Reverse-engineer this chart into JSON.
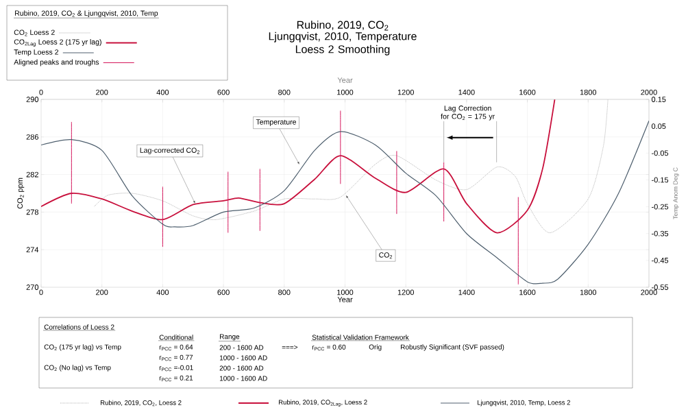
{
  "chart_data": {
    "type": "line",
    "title": "Rubino, 2019, CO$_{2}$",
    "subtitle": "Ljungqvist, 2010, Temperature Loess 2 Smoothing",
    "xlabel": "Year",
    "x2label": "Year",
    "ylabel": "CO$_{2}$ ppm",
    "y2label": "Temp Anom Deg C",
    "legend_title": "Rubino, 2019, CO$_{2}$ & Ljungqvist, 2010, Temp",
    "legend": "top left",
    "grid": true,
    "marker": "none",
    "xlim": [
      0,
      2000
    ],
    "xticks": [
      0,
      200,
      400,
      600,
      800,
      1000,
      1200,
      1400,
      1600,
      1800,
      2000
    ],
    "x2lim": [
      0,
      2000
    ],
    "x2ticks": [
      0,
      200,
      400,
      600,
      800,
      1000,
      1200,
      1400,
      1600,
      1800,
      2000
    ],
    "ylim": [
      270,
      290
    ],
    "yticks": [
      270,
      274,
      278,
      282,
      286,
      290
    ],
    "y2lim": [
      -0.55,
      0.15
    ],
    "y2ticks": [
      -0.55,
      -0.45,
      -0.35,
      -0.25,
      -0.15,
      -0.05,
      0.05,
      0.15
    ],
    "series": [
      {
        "name": "CO$_{2}$ Loess 2",
        "color": "#b4b4b4",
        "line_style": "dotted",
        "x": [
          175,
          220,
          300,
          400,
          500,
          575,
          700,
          800,
          900,
          985,
          1100,
          1170,
          1300,
          1400,
          1500,
          1560,
          1600,
          1675,
          1800,
          1850,
          1865
        ],
        "values": [
          278.6,
          279.8,
          280.0,
          279.2,
          277.6,
          277.2,
          278.1,
          279.4,
          279.4,
          279.6,
          283.1,
          284.0,
          281.4,
          280.4,
          282.8,
          281.8,
          278.9,
          275.8,
          279.4,
          285.0,
          290
        ]
      },
      {
        "name": "CO$_{2Lag}$ Loess 2 (175 yr lag)",
        "color": "#c8103c",
        "line_style": "solid",
        "x": [
          0,
          100,
          200,
          300,
          400,
          500,
          600,
          650,
          720,
          800,
          900,
          985,
          1100,
          1200,
          1325,
          1400,
          1500,
          1600,
          1650,
          1690
        ],
        "values": [
          278.6,
          280.0,
          279.4,
          278.1,
          277.2,
          278.8,
          279.2,
          279.5,
          279.0,
          278.9,
          281.5,
          284.0,
          281.6,
          280.1,
          282.6,
          278.9,
          275.8,
          278.2,
          282.6,
          290
        ]
      },
      {
        "name": "Temp Loess 2",
        "color": "#4e5f6e",
        "line_style": "solid",
        "axis": "y2",
        "x": [
          0,
          100,
          200,
          300,
          400,
          440,
          500,
          600,
          700,
          800,
          900,
          985,
          1100,
          1200,
          1300,
          1400,
          1500,
          1600,
          1650,
          1700,
          1800,
          1900,
          2000
        ],
        "values": [
          -0.02,
          0.0,
          -0.04,
          -0.21,
          -0.315,
          -0.325,
          -0.32,
          -0.27,
          -0.255,
          -0.19,
          -0.04,
          0.03,
          -0.02,
          -0.125,
          -0.21,
          -0.35,
          -0.44,
          -0.53,
          -0.535,
          -0.52,
          -0.39,
          -0.2,
          0.07
        ]
      },
      {
        "name": "Aligned peaks and troughs",
        "color": "#d4145a",
        "line_style": "solid",
        "x": [
          100,
          100,
          null,
          400,
          400,
          null,
          615,
          615,
          null,
          720,
          720,
          null,
          985,
          985,
          null,
          1170,
          1170,
          null,
          1325,
          1325,
          null,
          1570,
          1570
        ],
        "values": [
          287.6,
          278.9,
          null,
          280.7,
          274.3,
          null,
          282.3,
          275.8,
          null,
          282.6,
          276.0,
          null,
          288.8,
          281.0,
          null,
          284.5,
          277.8,
          null,
          283.3,
          277.0,
          null,
          279.6,
          270.3
        ]
      }
    ],
    "annotations": [
      "Temperature",
      {
        "text": "Lag-corrected CO$_{2}$",
        "x": 507,
        "y": 278.9
      },
      {
        "text": "CO$_{2}$",
        "x": 1003,
        "y": 279.8
      },
      {
        "text": "Lag Correction for CO$_{2}$ = 175 yr",
        "x": 1325,
        "y": 283.3
      },
      "Correlations of Loess 2",
      "Conditional",
      "Range",
      "Statistical Validation Framework",
      "CO$_{2}$ (175 yr lag) vs Temp",
      "r$_{PCC}$ = 0.64",
      "200 - 1600 AD",
      "===>",
      "r$_{PCC}$ = 0.60",
      "Orig",
      "Robustly Significant (SVF passed)",
      "r$_{PCC}$ = 0.77",
      "1000 - 1600 AD",
      "CO$_{2}$ (No lag) vs Temp",
      "r$_{PCC}$ =-0.01",
      "200 - 1600 AD",
      "r$_{PCC}$ = 0.21",
      "1000 - 1600 AD",
      "Rubino, 2019, CO$_{2}$, Loess 2",
      "Rubino, 2019, CO$_{2Lag}$, Loess 2",
      "Ljungqvist, 2010, Temp, Loess 2"
    ]
  }
}
